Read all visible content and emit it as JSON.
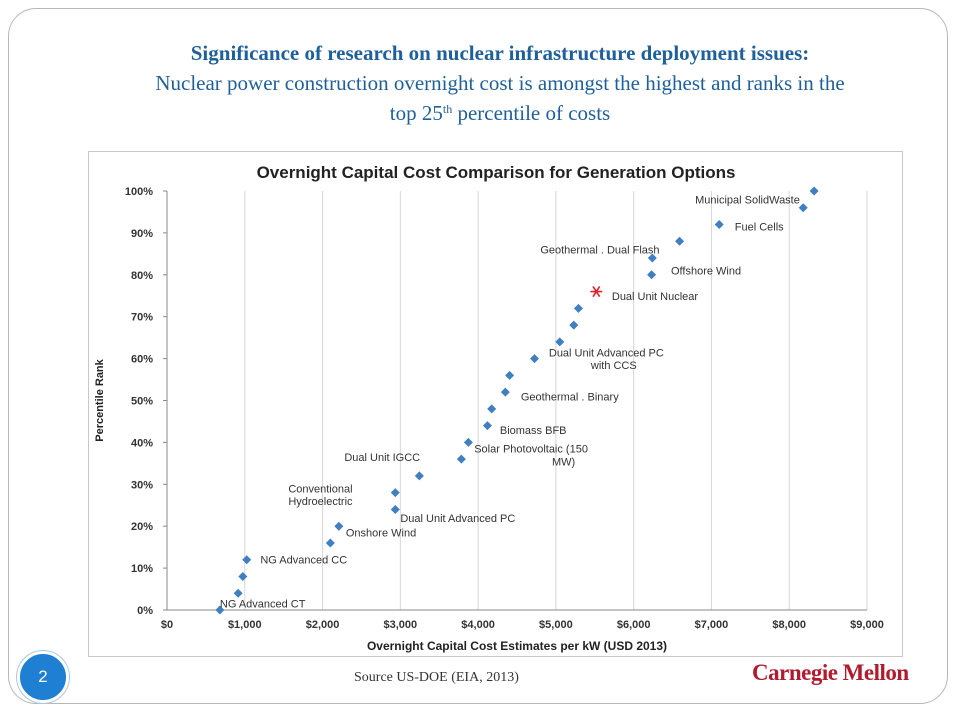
{
  "slide": {
    "title_bold": "Significance of research on nuclear infrastructure deployment issues:",
    "title_line2": "Nuclear power construction overnight cost is amongst the highest and ranks in the",
    "title_line3_pre": "top 25",
    "title_line3_sup": "th",
    "title_line3_post": " percentile of costs",
    "page_number": "2",
    "source": "Source US-DOE (EIA, 2013)",
    "logo": "Carnegie Mellon",
    "colors": {
      "title": "#1f5f9a",
      "marker": "#3f7fc2",
      "highlight": "#e0202a",
      "badge": "#1e7fd3",
      "logo": "#b01c2e"
    }
  },
  "chart_data": {
    "type": "scatter",
    "title": "Overnight Capital Cost Comparison for Generation Options",
    "xlabel": "Overnight Capital Cost Estimates per kW (USD 2013)",
    "ylabel": "Percentile Rank",
    "xlim": [
      0,
      9000
    ],
    "ylim": [
      0,
      100
    ],
    "xticks": [
      "$0",
      "$1,000",
      "$2,000",
      "$3,000",
      "$4,000",
      "$5,000",
      "$6,000",
      "$7,000",
      "$8,000",
      "$9,000"
    ],
    "yticks": [
      "0%",
      "10%",
      "20%",
      "30%",
      "40%",
      "50%",
      "60%",
      "70%",
      "80%",
      "90%",
      "100%"
    ],
    "grid": "vertical",
    "points": [
      {
        "x": 680,
        "y": 0
      },
      {
        "x": 915,
        "y": 4
      },
      {
        "x": 975,
        "y": 8
      },
      {
        "x": 1025,
        "y": 12
      },
      {
        "x": 2100,
        "y": 16
      },
      {
        "x": 2210,
        "y": 20
      },
      {
        "x": 2935,
        "y": 24
      },
      {
        "x": 2935,
        "y": 28
      },
      {
        "x": 3245,
        "y": 32
      },
      {
        "x": 3785,
        "y": 36
      },
      {
        "x": 3875,
        "y": 40
      },
      {
        "x": 4120,
        "y": 44
      },
      {
        "x": 4175,
        "y": 48
      },
      {
        "x": 4350,
        "y": 52
      },
      {
        "x": 4405,
        "y": 56
      },
      {
        "x": 4725,
        "y": 60
      },
      {
        "x": 5050,
        "y": 64
      },
      {
        "x": 5230,
        "y": 68
      },
      {
        "x": 5290,
        "y": 72
      },
      {
        "x": 6230,
        "y": 80
      },
      {
        "x": 6240,
        "y": 84
      },
      {
        "x": 6590,
        "y": 88
      },
      {
        "x": 7100,
        "y": 92
      },
      {
        "x": 8180,
        "y": 96
      },
      {
        "x": 8320,
        "y": 100
      }
    ],
    "annotations": [
      {
        "text": "NG Advanced CT",
        "x": 680,
        "y": 1.5
      },
      {
        "text": "NG Advanced CC",
        "x": 1200,
        "y": 12
      },
      {
        "text": "Onshore Wind",
        "x": 2300,
        "y": 18.5
      },
      {
        "text": "Conventional",
        "x": 1560,
        "y": 29
      },
      {
        "text": "Hydroelectric",
        "x": 1560,
        "y": 26
      },
      {
        "text": "Dual Unit Advanced PC",
        "x": 3000,
        "y": 22
      },
      {
        "text": "Dual Unit IGCC",
        "x": 2280,
        "y": 36.5
      },
      {
        "text": "Solar Photovoltaic (150",
        "x": 3950,
        "y": 38.5
      },
      {
        "text": "MW)",
        "x": 4950,
        "y": 35.5
      },
      {
        "text": "Biomass BFB",
        "x": 4280,
        "y": 43
      },
      {
        "text": "Geothermal . Binary",
        "x": 4550,
        "y": 51
      },
      {
        "text": "Dual Unit Advanced PC",
        "x": 4910,
        "y": 61.5
      },
      {
        "text": "with CCS",
        "x": 5450,
        "y": 58.5
      },
      {
        "text": "Dual Unit Nuclear",
        "x": 5720,
        "y": 75
      },
      {
        "text": "Offshore Wind",
        "x": 6480,
        "y": 81
      },
      {
        "text": "Geothermal . Dual Flash",
        "x": 4800,
        "y": 86
      },
      {
        "text": "Fuel Cells",
        "x": 7300,
        "y": 91.5
      },
      {
        "text": "Municipal SolidWaste",
        "x": 6790,
        "y": 98
      }
    ],
    "highlight": {
      "label": "Dual Unit Nuclear",
      "x": 5520,
      "y": 76,
      "marker": "asterisk"
    }
  }
}
